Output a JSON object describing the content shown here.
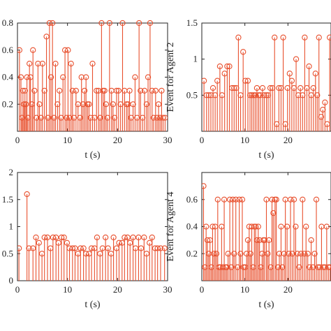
{
  "colors": {
    "stem": "#e8502e",
    "axis": "#222222",
    "background": "#ffffff"
  },
  "chart_data": [
    {
      "type": "stem",
      "xlabel": "t (s)",
      "ylabel": "",
      "xlim": [
        0,
        30
      ],
      "ylim": [
        0,
        0.8
      ],
      "xticks": [
        "0",
        "10",
        "20",
        "30"
      ],
      "yticks": [
        "0.2",
        "0.4",
        "0.6",
        "0.8"
      ],
      "points": [
        [
          0.4,
          0.6
        ],
        [
          0.7,
          0.4
        ],
        [
          0.9,
          0.1
        ],
        [
          1.1,
          0.3
        ],
        [
          1.3,
          0.2
        ],
        [
          1.5,
          0.3
        ],
        [
          1.7,
          0.2
        ],
        [
          1.9,
          0.4
        ],
        [
          2.1,
          0.1
        ],
        [
          2.4,
          0.5
        ],
        [
          2.6,
          0.4
        ],
        [
          2.9,
          0.2
        ],
        [
          3.1,
          0.6
        ],
        [
          3.4,
          0.3
        ],
        [
          3.8,
          0.1
        ],
        [
          4.1,
          0.5
        ],
        [
          4.4,
          0.2
        ],
        [
          4.7,
          0.1
        ],
        [
          5.0,
          0.5
        ],
        [
          5.4,
          0.3
        ],
        [
          5.8,
          0.7
        ],
        [
          6.1,
          0.1
        ],
        [
          6.4,
          0.8
        ],
        [
          6.7,
          0.4
        ],
        [
          7.0,
          0.8
        ],
        [
          7.3,
          0.1
        ],
        [
          7.6,
          0.5
        ],
        [
          8.0,
          0.2
        ],
        [
          8.4,
          0.3
        ],
        [
          8.7,
          0.1
        ],
        [
          9.1,
          0.4
        ],
        [
          9.5,
          0.6
        ],
        [
          9.8,
          0.1
        ],
        [
          10.1,
          0.6
        ],
        [
          10.4,
          0.1
        ],
        [
          10.7,
          0.5
        ],
        [
          11.0,
          0.3
        ],
        [
          11.3,
          0.1
        ],
        [
          11.7,
          0.3
        ],
        [
          12.1,
          0.2
        ],
        [
          12.5,
          0.1
        ],
        [
          12.8,
          0.4
        ],
        [
          13.1,
          0.2
        ],
        [
          13.4,
          0.3
        ],
        [
          13.7,
          0.4
        ],
        [
          14.0,
          0.2
        ],
        [
          14.3,
          0.2
        ],
        [
          14.6,
          0.1
        ],
        [
          15.0,
          0.5
        ],
        [
          15.4,
          0.1
        ],
        [
          15.8,
          0.3
        ],
        [
          16.2,
          0.3
        ],
        [
          16.5,
          0.1
        ],
        [
          16.8,
          0.8
        ],
        [
          17.1,
          0.3
        ],
        [
          17.4,
          0.3
        ],
        [
          17.7,
          0.2
        ],
        [
          18.0,
          0.1
        ],
        [
          18.4,
          0.8
        ],
        [
          18.8,
          0.3
        ],
        [
          19.1,
          0.2
        ],
        [
          19.4,
          0.1
        ],
        [
          19.8,
          0.3
        ],
        [
          20.2,
          0.3
        ],
        [
          20.6,
          0.2
        ],
        [
          21.0,
          0.8
        ],
        [
          21.4,
          0.3
        ],
        [
          21.8,
          0.2
        ],
        [
          22.1,
          0.2
        ],
        [
          22.4,
          0.3
        ],
        [
          22.7,
          0.1
        ],
        [
          23.1,
          0.2
        ],
        [
          23.5,
          0.4
        ],
        [
          23.9,
          0.1
        ],
        [
          24.3,
          0.8
        ],
        [
          24.6,
          0.3
        ],
        [
          25.0,
          0.1
        ],
        [
          25.4,
          0.3
        ],
        [
          25.8,
          0.2
        ],
        [
          26.1,
          0.4
        ],
        [
          26.5,
          0.8
        ],
        [
          26.9,
          0.3
        ],
        [
          27.2,
          0.1
        ],
        [
          27.6,
          0.3
        ],
        [
          27.9,
          0.1
        ],
        [
          28.2,
          0.2
        ],
        [
          28.5,
          0.1
        ],
        [
          28.8,
          0.3
        ],
        [
          29.1,
          0.1
        ],
        [
          29.5,
          0.1
        ]
      ]
    },
    {
      "type": "stem",
      "xlabel": "t (s)",
      "ylabel": "Event for Agent 2",
      "xlim": [
        0,
        30
      ],
      "ylim": [
        0,
        1.5
      ],
      "xticks": [
        "0",
        "10",
        "20",
        ""
      ],
      "yticks": [
        "0.5",
        "1",
        "1.5"
      ],
      "points": [
        [
          0.5,
          0.7
        ],
        [
          1.1,
          0.5
        ],
        [
          1.6,
          0.5
        ],
        [
          2.1,
          0.5
        ],
        [
          2.6,
          0.6
        ],
        [
          3.1,
          0.5
        ],
        [
          3.6,
          0.7
        ],
        [
          4.2,
          0.9
        ],
        [
          4.7,
          0.5
        ],
        [
          5.3,
          0.8
        ],
        [
          5.9,
          0.9
        ],
        [
          6.4,
          0.9
        ],
        [
          7.0,
          0.6
        ],
        [
          7.5,
          0.6
        ],
        [
          8.0,
          0.6
        ],
        [
          8.5,
          1.3
        ],
        [
          9.0,
          0.5
        ],
        [
          9.6,
          1.1
        ],
        [
          10.1,
          0.7
        ],
        [
          10.7,
          0.7
        ],
        [
          11.2,
          0.5
        ],
        [
          11.6,
          0.5
        ],
        [
          12.0,
          0.5
        ],
        [
          12.4,
          0.5
        ],
        [
          12.8,
          0.6
        ],
        [
          13.2,
          0.5
        ],
        [
          13.6,
          0.5
        ],
        [
          14.1,
          0.6
        ],
        [
          14.5,
          0.5
        ],
        [
          15.0,
          0.5
        ],
        [
          15.4,
          0.5
        ],
        [
          15.9,
          0.6
        ],
        [
          16.4,
          0.6
        ],
        [
          16.9,
          1.3
        ],
        [
          17.4,
          0.1
        ],
        [
          17.9,
          0.6
        ],
        [
          18.4,
          0.6
        ],
        [
          18.9,
          1.3
        ],
        [
          19.4,
          0.1
        ],
        [
          19.9,
          0.6
        ],
        [
          20.4,
          0.8
        ],
        [
          20.9,
          0.7
        ],
        [
          21.4,
          0.6
        ],
        [
          21.9,
          1.0
        ],
        [
          22.4,
          0.5
        ],
        [
          22.9,
          0.6
        ],
        [
          23.4,
          0.5
        ],
        [
          23.9,
          1.3
        ],
        [
          24.4,
          0.6
        ],
        [
          24.9,
          0.9
        ],
        [
          25.4,
          0.5
        ],
        [
          25.9,
          0.6
        ],
        [
          26.4,
          0.8
        ],
        [
          26.8,
          0.5
        ],
        [
          27.2,
          1.3
        ],
        [
          27.7,
          0.2
        ],
        [
          28.1,
          0.3
        ],
        [
          28.6,
          0.4
        ],
        [
          29.1,
          0.1
        ],
        [
          29.7,
          1.3
        ]
      ]
    },
    {
      "type": "stem",
      "xlabel": "t (s)",
      "ylabel": "",
      "xlim": [
        0,
        30
      ],
      "ylim": [
        0,
        2
      ],
      "xticks": [
        "0",
        "10",
        "20",
        "30"
      ],
      "yticks": [
        "0",
        "0.5",
        "1",
        "1.5",
        "2"
      ],
      "points": [
        [
          0.3,
          0.6
        ],
        [
          1.9,
          1.6
        ],
        [
          2.3,
          0.6
        ],
        [
          3.1,
          0.6
        ],
        [
          3.7,
          0.8
        ],
        [
          4.3,
          0.7
        ],
        [
          4.9,
          0.5
        ],
        [
          5.4,
          0.8
        ],
        [
          6.0,
          0.8
        ],
        [
          6.6,
          0.6
        ],
        [
          7.1,
          0.8
        ],
        [
          7.7,
          0.8
        ],
        [
          8.2,
          0.7
        ],
        [
          8.8,
          0.8
        ],
        [
          9.3,
          0.8
        ],
        [
          9.9,
          0.7
        ],
        [
          10.4,
          0.6
        ],
        [
          11.0,
          0.6
        ],
        [
          11.5,
          0.6
        ],
        [
          12.1,
          0.5
        ],
        [
          12.6,
          0.6
        ],
        [
          13.2,
          0.6
        ],
        [
          13.7,
          0.5
        ],
        [
          14.3,
          0.5
        ],
        [
          14.8,
          0.6
        ],
        [
          15.4,
          0.6
        ],
        [
          15.9,
          0.8
        ],
        [
          16.5,
          0.5
        ],
        [
          17.0,
          0.6
        ],
        [
          17.6,
          0.8
        ],
        [
          18.1,
          0.6
        ],
        [
          18.7,
          0.5
        ],
        [
          19.2,
          0.8
        ],
        [
          19.8,
          0.6
        ],
        [
          20.3,
          0.7
        ],
        [
          20.9,
          0.7
        ],
        [
          21.4,
          0.8
        ],
        [
          22.0,
          0.8
        ],
        [
          22.5,
          0.7
        ],
        [
          23.1,
          0.8
        ],
        [
          23.6,
          0.6
        ],
        [
          24.2,
          0.8
        ],
        [
          24.7,
          0.6
        ],
        [
          25.3,
          0.8
        ],
        [
          25.8,
          0.5
        ],
        [
          26.4,
          0.7
        ],
        [
          26.9,
          0.8
        ],
        [
          27.5,
          0.6
        ],
        [
          28.0,
          0.6
        ],
        [
          28.6,
          0.6
        ],
        [
          29.4,
          0.6
        ]
      ]
    },
    {
      "type": "stem",
      "xlabel": "t (s)",
      "ylabel": "Event for Agent 4",
      "xlim": [
        0,
        30
      ],
      "ylim": [
        0,
        0.8
      ],
      "xticks": [
        "0",
        "10",
        "20",
        ""
      ],
      "yticks": [
        "0.2",
        "0.4",
        "0.6"
      ],
      "points": [
        [
          0.4,
          0.7
        ],
        [
          0.7,
          0.1
        ],
        [
          1.0,
          0.4
        ],
        [
          1.3,
          0.3
        ],
        [
          1.6,
          0.2
        ],
        [
          1.9,
          0.3
        ],
        [
          2.2,
          0.1
        ],
        [
          2.5,
          0.4
        ],
        [
          2.8,
          0.2
        ],
        [
          3.1,
          0.4
        ],
        [
          3.4,
          0.2
        ],
        [
          3.7,
          0.6
        ],
        [
          4.0,
          0.1
        ],
        [
          4.3,
          0.1
        ],
        [
          4.6,
          0.4
        ],
        [
          4.9,
          0.1
        ],
        [
          5.2,
          0.6
        ],
        [
          5.5,
          0.1
        ],
        [
          5.8,
          0.1
        ],
        [
          6.1,
          0.2
        ],
        [
          6.5,
          0.6
        ],
        [
          6.8,
          0.1
        ],
        [
          7.2,
          0.6
        ],
        [
          7.5,
          0.2
        ],
        [
          7.9,
          0.6
        ],
        [
          8.3,
          0.1
        ],
        [
          8.7,
          0.6
        ],
        [
          9.0,
          0.2
        ],
        [
          9.4,
          0.6
        ],
        [
          9.7,
          0.1
        ],
        [
          10.1,
          0.1
        ],
        [
          10.4,
          0.2
        ],
        [
          10.7,
          0.3
        ],
        [
          11.0,
          0.4
        ],
        [
          11.3,
          0.2
        ],
        [
          11.6,
          0.4
        ],
        [
          11.9,
          0.1
        ],
        [
          12.2,
          0.4
        ],
        [
          12.5,
          0.4
        ],
        [
          12.8,
          0.3
        ],
        [
          13.1,
          0.4
        ],
        [
          13.4,
          0.3
        ],
        [
          13.7,
          0.1
        ],
        [
          14.0,
          0.2
        ],
        [
          14.3,
          0.3
        ],
        [
          14.6,
          0.3
        ],
        [
          15.0,
          0.6
        ],
        [
          15.3,
          0.2
        ],
        [
          15.6,
          0.3
        ],
        [
          16.0,
          0.1
        ],
        [
          16.3,
          0.6
        ],
        [
          16.6,
          0.5
        ],
        [
          17.0,
          0.6
        ],
        [
          17.3,
          0.6
        ],
        [
          17.7,
          0.1
        ],
        [
          18.0,
          0.2
        ],
        [
          18.4,
          0.4
        ],
        [
          18.7,
          0.1
        ],
        [
          19.1,
          0.2
        ],
        [
          19.4,
          0.6
        ],
        [
          19.8,
          0.4
        ],
        [
          20.2,
          0.2
        ],
        [
          20.6,
          0.6
        ],
        [
          21.0,
          0.2
        ],
        [
          21.4,
          0.6
        ],
        [
          21.8,
          0.4
        ],
        [
          22.2,
          0.2
        ],
        [
          22.6,
          0.1
        ],
        [
          23.0,
          0.2
        ],
        [
          23.4,
          0.6
        ],
        [
          23.8,
          0.2
        ],
        [
          24.2,
          0.4
        ],
        [
          24.6,
          0.2
        ],
        [
          25.0,
          0.1
        ],
        [
          25.4,
          0.3
        ],
        [
          25.8,
          0.1
        ],
        [
          26.2,
          0.2
        ],
        [
          26.6,
          0.6
        ],
        [
          27.0,
          0.1
        ],
        [
          27.4,
          0.1
        ],
        [
          27.8,
          0.4
        ],
        [
          28.2,
          0.1
        ],
        [
          28.6,
          0.1
        ],
        [
          29.0,
          0.4
        ],
        [
          29.4,
          0.1
        ],
        [
          29.8,
          0.1
        ]
      ]
    }
  ]
}
